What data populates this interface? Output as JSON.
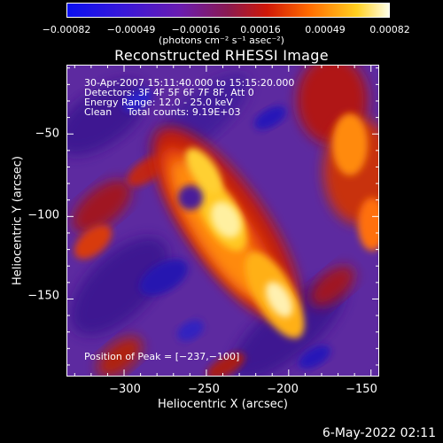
{
  "colorbar": {
    "ticks": [
      "−0.00082",
      "−0.00049",
      "−0.00016",
      "0.00016",
      "0.00049",
      "0.00082"
    ],
    "units": "(photons cm⁻² s⁻¹ asec⁻²)"
  },
  "chart_data": {
    "type": "heatmap",
    "title": "Reconstructed RHESSI Image",
    "xlabel": "Heliocentric X (arcsec)",
    "ylabel": "Heliocentric Y (arcsec)",
    "xlim": [
      -335,
      -145
    ],
    "ylim": [
      -197,
      -8
    ],
    "xticks": [
      -300,
      -250,
      -200,
      -150
    ],
    "yticks": [
      -50,
      -100,
      -150
    ],
    "xtick_labels": [
      "−300",
      "−250",
      "−200",
      "−150"
    ],
    "ytick_labels": [
      "−50",
      "−100",
      "−150"
    ],
    "colorbar_range": [
      -0.00082,
      0.00082
    ],
    "peak_position": [
      -237,
      -100
    ],
    "annotations": [
      "30-Apr-2007 15:11:40.000 to 15:15:20.000",
      "Detectors: 3F 4F 5F 6F 7F 8F, Att 0",
      "Energy Range: 12.0 - 25.0 keV",
      "Clean     Total counts: 9.19E+03",
      "Position of Peak = [−237,−100]"
    ]
  },
  "timestamp": "6-May-2022 02:11"
}
